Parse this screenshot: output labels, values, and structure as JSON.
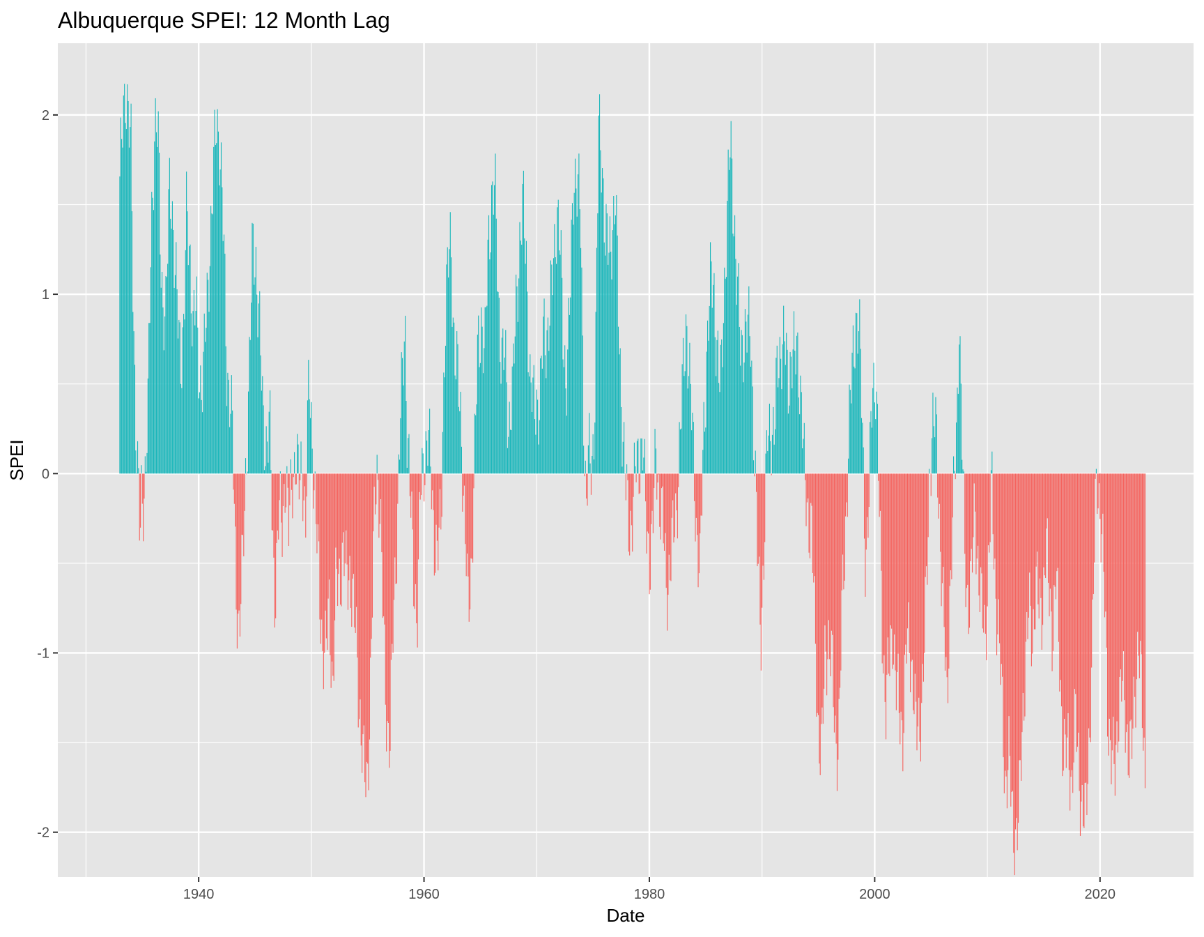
{
  "chart_data": {
    "type": "bar",
    "title": "Albuquerque SPEI: 12 Month Lag",
    "xlabel": "Date",
    "ylabel": "SPEI",
    "xlim": [
      1927.5,
      2028.3
    ],
    "ylim": [
      -2.25,
      2.4
    ],
    "x_ticks": [
      {
        "value": 1940,
        "label": "1940"
      },
      {
        "value": 1960,
        "label": "1960"
      },
      {
        "value": 1980,
        "label": "1980"
      },
      {
        "value": 2000,
        "label": "2000"
      },
      {
        "value": 2020,
        "label": "2020"
      }
    ],
    "x_minor_ticks": [
      1930,
      1950,
      1970,
      1990,
      2010
    ],
    "y_ticks": [
      {
        "value": 2,
        "label": "2"
      },
      {
        "value": 1,
        "label": "1"
      },
      {
        "value": 0,
        "label": "0"
      },
      {
        "value": -1,
        "label": "-1"
      },
      {
        "value": -2,
        "label": "-2"
      }
    ],
    "y_minor_ticks": [
      1.5,
      0.5,
      -0.5,
      -1.5
    ],
    "colors": {
      "positive": "#18B6BA",
      "negative": "#F5625D",
      "panel": "#E5E5E5",
      "grid": "#FFFFFF"
    },
    "grid": true,
    "legend": "none",
    "series_description": "Monthly SPEI values; bars >= 0 in positive color, < 0 in negative color",
    "x_start": 1933.0,
    "x_step_months": 1,
    "anchors": [
      [
        1933.0,
        1.55
      ],
      [
        1933.3,
        2.05
      ],
      [
        1933.5,
        2.2
      ],
      [
        1933.8,
        1.9
      ],
      [
        1934.0,
        1.8
      ],
      [
        1934.2,
        1.0
      ],
      [
        1934.4,
        0.35
      ],
      [
        1934.6,
        -0.05
      ],
      [
        1934.8,
        -0.42
      ],
      [
        1934.9,
        -0.15
      ],
      [
        1935.2,
        -0.05
      ],
      [
        1935.5,
        0.3
      ],
      [
        1935.8,
        1.4
      ],
      [
        1936.1,
        1.95
      ],
      [
        1936.4,
        1.85
      ],
      [
        1936.6,
        1.3
      ],
      [
        1936.8,
        1.0
      ],
      [
        1937.1,
        0.85
      ],
      [
        1937.4,
        1.6
      ],
      [
        1937.6,
        1.6
      ],
      [
        1937.9,
        1.1
      ],
      [
        1938.1,
        0.9
      ],
      [
        1938.4,
        0.7
      ],
      [
        1938.7,
        0.8
      ],
      [
        1938.9,
        1.4
      ],
      [
        1939.2,
        1.3
      ],
      [
        1939.5,
        0.8
      ],
      [
        1939.8,
        0.9
      ],
      [
        1940.1,
        0.55
      ],
      [
        1940.4,
        0.5
      ],
      [
        1940.7,
        0.9
      ],
      [
        1941.0,
        1.3
      ],
      [
        1941.3,
        1.6
      ],
      [
        1941.6,
        2.0
      ],
      [
        1941.9,
        1.85
      ],
      [
        1942.2,
        1.3
      ],
      [
        1942.5,
        0.6
      ],
      [
        1942.8,
        0.45
      ],
      [
        1943.0,
        0.2
      ],
      [
        1943.3,
        -0.6
      ],
      [
        1943.6,
        -0.85
      ],
      [
        1943.9,
        -0.55
      ],
      [
        1944.2,
        0.05
      ],
      [
        1944.5,
        0.6
      ],
      [
        1944.8,
        1.25
      ],
      [
        1945.1,
        1.2
      ],
      [
        1945.4,
        0.8
      ],
      [
        1945.7,
        0.3
      ],
      [
        1946.0,
        0.2
      ],
      [
        1946.3,
        0.25
      ],
      [
        1946.6,
        -0.45
      ],
      [
        1946.8,
        -0.65
      ],
      [
        1947.1,
        -0.25
      ],
      [
        1947.4,
        -0.3
      ],
      [
        1947.7,
        0.05
      ],
      [
        1948.0,
        -0.35
      ],
      [
        1948.3,
        0.0
      ],
      [
        1948.6,
        0.1
      ],
      [
        1948.9,
        -0.1
      ],
      [
        1949.2,
        0.1
      ],
      [
        1949.5,
        -0.3
      ],
      [
        1949.8,
        0.55
      ],
      [
        1950.1,
        0.2
      ],
      [
        1950.4,
        -0.3
      ],
      [
        1950.7,
        -0.6
      ],
      [
        1951.0,
        -0.95
      ],
      [
        1951.3,
        -1.05
      ],
      [
        1951.6,
        -0.7
      ],
      [
        1951.9,
        -1.2
      ],
      [
        1952.2,
        -0.65
      ],
      [
        1952.5,
        -0.55
      ],
      [
        1952.8,
        -0.45
      ],
      [
        1953.1,
        -0.6
      ],
      [
        1953.4,
        -0.5
      ],
      [
        1953.7,
        -0.75
      ],
      [
        1954.0,
        -0.95
      ],
      [
        1954.3,
        -1.3
      ],
      [
        1954.6,
        -1.65
      ],
      [
        1954.9,
        -1.75
      ],
      [
        1955.2,
        -1.3
      ],
      [
        1955.5,
        -0.5
      ],
      [
        1955.8,
        0.1
      ],
      [
        1956.1,
        -0.2
      ],
      [
        1956.4,
        -0.9
      ],
      [
        1956.7,
        -1.35
      ],
      [
        1957.0,
        -1.5
      ],
      [
        1957.3,
        -0.8
      ],
      [
        1957.6,
        -0.3
      ],
      [
        1957.9,
        0.3
      ],
      [
        1958.1,
        0.5
      ],
      [
        1958.3,
        0.9
      ],
      [
        1958.5,
        0.3
      ],
      [
        1958.8,
        -0.2
      ],
      [
        1959.1,
        -0.55
      ],
      [
        1959.4,
        -0.8
      ],
      [
        1959.7,
        -0.1
      ],
      [
        1960.0,
        0.1
      ],
      [
        1960.3,
        0.2
      ],
      [
        1960.6,
        0.0
      ],
      [
        1960.9,
        -0.3
      ],
      [
        1961.2,
        -0.5
      ],
      [
        1961.5,
        -0.3
      ],
      [
        1961.8,
        0.7
      ],
      [
        1962.1,
        1.1
      ],
      [
        1962.4,
        1.3
      ],
      [
        1962.7,
        0.7
      ],
      [
        1963.0,
        0.5
      ],
      [
        1963.3,
        0.3
      ],
      [
        1963.6,
        -0.25
      ],
      [
        1963.9,
        -0.8
      ],
      [
        1964.2,
        -0.5
      ],
      [
        1964.5,
        0.1
      ],
      [
        1964.8,
        0.7
      ],
      [
        1965.1,
        0.9
      ],
      [
        1965.4,
        0.6
      ],
      [
        1965.7,
        1.3
      ],
      [
        1966.0,
        1.55
      ],
      [
        1966.3,
        1.55
      ],
      [
        1966.6,
        1.0
      ],
      [
        1966.9,
        0.65
      ],
      [
        1967.2,
        0.6
      ],
      [
        1967.5,
        0.3
      ],
      [
        1967.7,
        0.4
      ],
      [
        1967.9,
        0.45
      ],
      [
        1968.2,
        1.0
      ],
      [
        1968.5,
        1.3
      ],
      [
        1968.8,
        1.45
      ],
      [
        1969.1,
        1.2
      ],
      [
        1969.4,
        0.5
      ],
      [
        1969.7,
        0.35
      ],
      [
        1970.0,
        0.45
      ],
      [
        1970.3,
        0.35
      ],
      [
        1970.6,
        0.8
      ],
      [
        1970.9,
        0.8
      ],
      [
        1971.2,
        0.85
      ],
      [
        1971.5,
        1.2
      ],
      [
        1971.8,
        1.5
      ],
      [
        1972.1,
        1.2
      ],
      [
        1972.4,
        0.7
      ],
      [
        1972.7,
        0.55
      ],
      [
        1973.0,
        1.0
      ],
      [
        1973.3,
        1.75
      ],
      [
        1973.6,
        1.6
      ],
      [
        1973.9,
        1.4
      ],
      [
        1974.2,
        0.3
      ],
      [
        1974.4,
        -0.2
      ],
      [
        1974.6,
        0.05
      ],
      [
        1974.9,
        0.05
      ],
      [
        1975.2,
        0.5
      ],
      [
        1975.5,
        1.9
      ],
      [
        1975.8,
        1.8
      ],
      [
        1976.1,
        1.3
      ],
      [
        1976.4,
        1.2
      ],
      [
        1976.7,
        1.4
      ],
      [
        1977.0,
        1.5
      ],
      [
        1977.3,
        0.8
      ],
      [
        1977.6,
        0.3
      ],
      [
        1977.9,
        -0.1
      ],
      [
        1978.2,
        -0.3
      ],
      [
        1978.5,
        -0.2
      ],
      [
        1978.8,
        0.0
      ],
      [
        1979.1,
        0.1
      ],
      [
        1979.4,
        0.2
      ],
      [
        1979.7,
        -0.3
      ],
      [
        1980.0,
        -0.45
      ],
      [
        1980.3,
        -0.3
      ],
      [
        1980.6,
        0.1
      ],
      [
        1980.9,
        -0.1
      ],
      [
        1981.2,
        -0.3
      ],
      [
        1981.5,
        -0.65
      ],
      [
        1981.8,
        -0.5
      ],
      [
        1982.1,
        -0.4
      ],
      [
        1982.4,
        -0.2
      ],
      [
        1982.7,
        0.2
      ],
      [
        1983.0,
        0.5
      ],
      [
        1983.3,
        0.9
      ],
      [
        1983.6,
        0.5
      ],
      [
        1983.9,
        0.1
      ],
      [
        1984.2,
        -0.3
      ],
      [
        1984.5,
        -0.6
      ],
      [
        1984.8,
        0.2
      ],
      [
        1985.1,
        0.7
      ],
      [
        1985.4,
        1.0
      ],
      [
        1985.7,
        1.1
      ],
      [
        1986.0,
        0.7
      ],
      [
        1986.3,
        0.4
      ],
      [
        1986.6,
        1.0
      ],
      [
        1986.9,
        1.4
      ],
      [
        1987.2,
        1.85
      ],
      [
        1987.5,
        1.5
      ],
      [
        1987.8,
        1.0
      ],
      [
        1988.1,
        0.7
      ],
      [
        1988.4,
        0.8
      ],
      [
        1988.7,
        0.75
      ],
      [
        1989.0,
        0.8
      ],
      [
        1989.3,
        0.2
      ],
      [
        1989.6,
        -0.5
      ],
      [
        1989.9,
        -0.85
      ],
      [
        1990.2,
        -0.4
      ],
      [
        1990.5,
        0.2
      ],
      [
        1990.8,
        0.3
      ],
      [
        1991.1,
        0.2
      ],
      [
        1991.4,
        0.6
      ],
      [
        1991.7,
        0.75
      ],
      [
        1992.0,
        0.7
      ],
      [
        1992.3,
        0.5
      ],
      [
        1992.6,
        0.7
      ],
      [
        1992.9,
        0.6
      ],
      [
        1993.2,
        0.7
      ],
      [
        1993.5,
        0.4
      ],
      [
        1993.8,
        -0.1
      ],
      [
        1994.1,
        -0.2
      ],
      [
        1994.4,
        -0.3
      ],
      [
        1994.7,
        -0.9
      ],
      [
        1995.0,
        -1.4
      ],
      [
        1995.3,
        -1.6
      ],
      [
        1995.6,
        -1.0
      ],
      [
        1995.9,
        -0.9
      ],
      [
        1996.2,
        -1.1
      ],
      [
        1996.5,
        -1.45
      ],
      [
        1996.8,
        -1.5
      ],
      [
        1997.1,
        -0.8
      ],
      [
        1997.4,
        -0.3
      ],
      [
        1997.7,
        0.2
      ],
      [
        1998.0,
        0.55
      ],
      [
        1998.3,
        0.9
      ],
      [
        1998.6,
        0.8
      ],
      [
        1998.9,
        0.3
      ],
      [
        1999.2,
        -0.5
      ],
      [
        1999.5,
        -0.2
      ],
      [
        1999.8,
        0.55
      ],
      [
        2000.1,
        0.55
      ],
      [
        2000.4,
        -0.2
      ],
      [
        2000.7,
        -0.9
      ],
      [
        2001.0,
        -1.3
      ],
      [
        2001.3,
        -1.1
      ],
      [
        2001.6,
        -0.8
      ],
      [
        2001.9,
        -1.2
      ],
      [
        2002.2,
        -1.35
      ],
      [
        2002.5,
        -1.4
      ],
      [
        2002.8,
        -1.0
      ],
      [
        2003.1,
        -0.95
      ],
      [
        2003.4,
        -1.1
      ],
      [
        2003.7,
        -1.5
      ],
      [
        2004.0,
        -1.4
      ],
      [
        2004.3,
        -1.1
      ],
      [
        2004.6,
        -0.7
      ],
      [
        2004.9,
        0.1
      ],
      [
        2005.2,
        0.3
      ],
      [
        2005.5,
        0.15
      ],
      [
        2005.8,
        -0.3
      ],
      [
        2006.1,
        -0.8
      ],
      [
        2006.4,
        -1.3
      ],
      [
        2006.7,
        -0.6
      ],
      [
        2007.0,
        -0.2
      ],
      [
        2007.3,
        0.3
      ],
      [
        2007.5,
        0.95
      ],
      [
        2007.7,
        0.3
      ],
      [
        2008.0,
        -0.5
      ],
      [
        2008.3,
        -0.7
      ],
      [
        2008.6,
        -0.6
      ],
      [
        2008.9,
        -0.2
      ],
      [
        2009.2,
        -0.5
      ],
      [
        2009.5,
        -0.8
      ],
      [
        2009.8,
        -0.9
      ],
      [
        2010.1,
        -0.5
      ],
      [
        2010.4,
        -0.1
      ],
      [
        2010.7,
        -0.6
      ],
      [
        2011.0,
        -0.9
      ],
      [
        2011.3,
        -1.3
      ],
      [
        2011.6,
        -1.7
      ],
      [
        2011.9,
        -1.6
      ],
      [
        2012.2,
        -1.9
      ],
      [
        2012.5,
        -2.0
      ],
      [
        2012.8,
        -1.95
      ],
      [
        2013.1,
        -1.4
      ],
      [
        2013.4,
        -1.0
      ],
      [
        2013.7,
        -0.8
      ],
      [
        2014.0,
        -0.9
      ],
      [
        2014.3,
        -0.6
      ],
      [
        2014.6,
        -0.8
      ],
      [
        2014.9,
        -0.7
      ],
      [
        2015.2,
        -0.4
      ],
      [
        2015.5,
        -0.7
      ],
      [
        2015.8,
        -0.85
      ],
      [
        2016.1,
        -0.6
      ],
      [
        2016.4,
        -1.0
      ],
      [
        2016.7,
        -1.5
      ],
      [
        2016.9,
        -1.6
      ],
      [
        2017.2,
        -1.55
      ],
      [
        2017.5,
        -1.7
      ],
      [
        2017.8,
        -1.4
      ],
      [
        2018.1,
        -1.6
      ],
      [
        2018.4,
        -1.85
      ],
      [
        2018.7,
        -2.0
      ],
      [
        2019.0,
        -1.5
      ],
      [
        2019.3,
        -1.0
      ],
      [
        2019.6,
        -0.2
      ],
      [
        2019.8,
        0.02
      ],
      [
        2020.1,
        -0.3
      ],
      [
        2020.4,
        -0.7
      ],
      [
        2020.7,
        -1.3
      ],
      [
        2021.0,
        -1.6
      ],
      [
        2021.3,
        -1.7
      ],
      [
        2021.6,
        -1.3
      ],
      [
        2021.9,
        -1.2
      ],
      [
        2022.2,
        -1.3
      ],
      [
        2022.5,
        -1.5
      ],
      [
        2022.8,
        -1.6
      ],
      [
        2023.1,
        -1.2
      ],
      [
        2023.4,
        -0.9
      ],
      [
        2023.7,
        -1.3
      ],
      [
        2024.0,
        -1.7
      ]
    ]
  }
}
